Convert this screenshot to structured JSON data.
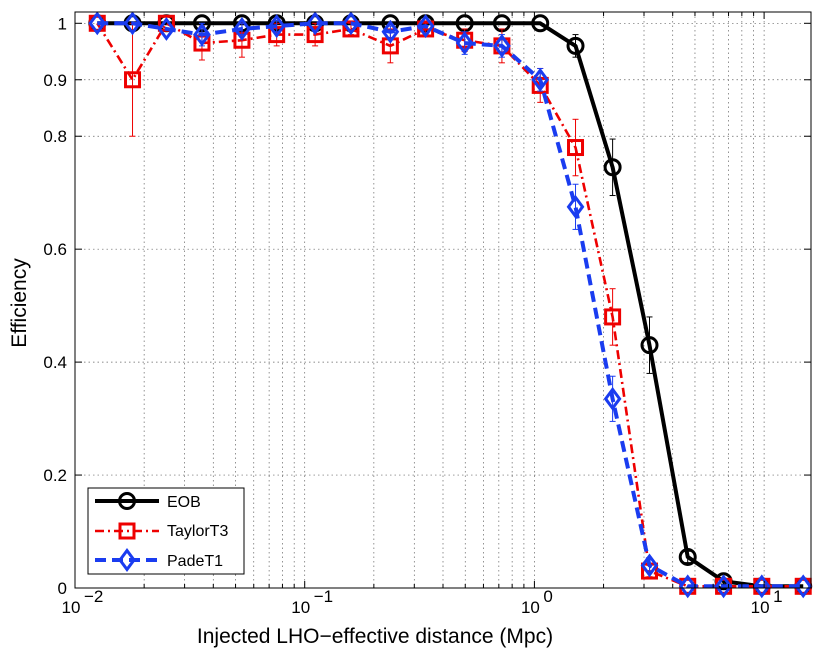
{
  "chart_data": {
    "type": "line",
    "title": "",
    "xlabel": "Injected LHO−effective distance (Mpc)",
    "ylabel": "Efficiency",
    "xscale": "log",
    "xlim": [
      0.01,
      16
    ],
    "ylim": [
      0,
      1.02
    ],
    "grid": true,
    "x_ticks": [
      {
        "value": 0.01,
        "base": "10",
        "exp": "−2"
      },
      {
        "value": 0.1,
        "base": "10",
        "exp": "−1"
      },
      {
        "value": 1,
        "base": "10",
        "exp": "0"
      },
      {
        "value": 10,
        "base": "10",
        "exp": "1"
      }
    ],
    "y_ticks": [
      {
        "value": 0,
        "label": "0"
      },
      {
        "value": 0.2,
        "label": "0.2"
      },
      {
        "value": 0.4,
        "label": "0.4"
      },
      {
        "value": 0.6,
        "label": "0.6"
      },
      {
        "value": 0.8,
        "label": "0.8"
      },
      {
        "value": 0.9,
        "label": "0.9"
      },
      {
        "value": 1,
        "label": "1"
      }
    ],
    "legend_position": "bottom-left",
    "series": [
      {
        "name": "EOB",
        "color": "#000000",
        "marker": "circle",
        "line_style": "solid",
        "x": [
          0.0125,
          0.0178,
          0.025,
          0.0357,
          0.0533,
          0.0755,
          0.111,
          0.159,
          0.236,
          0.336,
          0.497,
          0.722,
          1.06,
          1.51,
          2.19,
          3.17,
          4.65,
          6.66,
          9.77,
          14.8
        ],
        "y": [
          1.0,
          1.0,
          1.0,
          1.0,
          1.0,
          1.0,
          1.0,
          1.0,
          1.0,
          1.0,
          1.0,
          1.0,
          1.0,
          0.96,
          0.745,
          0.43,
          0.055,
          0.012,
          0.003,
          0.003
        ],
        "err": [
          0,
          0,
          0,
          0,
          0,
          0,
          0,
          0,
          0,
          0,
          0,
          0,
          0,
          0.02,
          0.05,
          0.05,
          0.01,
          0.005,
          0,
          0
        ]
      },
      {
        "name": "TaylorT3",
        "color": "#ee0000",
        "marker": "square",
        "line_style": "dashdot",
        "x": [
          0.0125,
          0.0178,
          0.025,
          0.0357,
          0.0533,
          0.0755,
          0.111,
          0.159,
          0.236,
          0.336,
          0.497,
          0.722,
          1.06,
          1.51,
          2.19,
          3.17,
          4.65,
          6.66,
          9.77,
          14.8
        ],
        "y": [
          1.0,
          0.9,
          1.0,
          0.965,
          0.97,
          0.98,
          0.98,
          0.99,
          0.96,
          0.99,
          0.97,
          0.96,
          0.89,
          0.78,
          0.48,
          0.03,
          0.003,
          0.003,
          0.003,
          0.003
        ],
        "err": [
          0,
          0.1,
          0,
          0.03,
          0.03,
          0.02,
          0.02,
          0.01,
          0.03,
          0.01,
          0.02,
          0.03,
          0.03,
          0.05,
          0.05,
          0.01,
          0,
          0,
          0,
          0
        ]
      },
      {
        "name": "PadeT1",
        "color": "#1a3cf0",
        "marker": "diamond",
        "line_style": "dashed",
        "x": [
          0.0125,
          0.0178,
          0.025,
          0.0357,
          0.0533,
          0.0755,
          0.111,
          0.159,
          0.236,
          0.336,
          0.497,
          0.722,
          1.06,
          1.51,
          2.19,
          3.17,
          4.65,
          6.66,
          9.77,
          14.8
        ],
        "y": [
          1.0,
          1.0,
          0.99,
          0.98,
          0.99,
          0.995,
          1.0,
          1.0,
          0.985,
          0.995,
          0.965,
          0.96,
          0.9,
          0.675,
          0.335,
          0.04,
          0.003,
          0.003,
          0.003,
          0.003
        ],
        "err": [
          0,
          0,
          0,
          0.02,
          0.01,
          0.01,
          0,
          0,
          0.01,
          0,
          0.02,
          0.02,
          0.02,
          0.04,
          0.04,
          0.01,
          0,
          0,
          0,
          0
        ]
      }
    ]
  }
}
